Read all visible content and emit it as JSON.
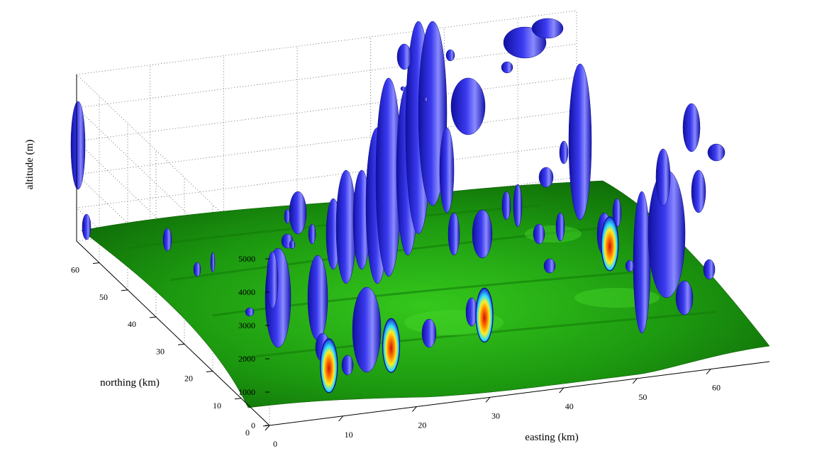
{
  "chart_data": {
    "type": "surface3d",
    "title": "",
    "xlabel": "easting (km)",
    "ylabel": "northing (km)",
    "zlabel": "altitude (m)",
    "x_ticks": [
      "0",
      "10",
      "20",
      "30",
      "40",
      "50",
      "60"
    ],
    "y_ticks": [
      "0",
      "10",
      "20",
      "30",
      "40",
      "50",
      "60"
    ],
    "z_ticks": [
      "0",
      "1000",
      "2000",
      "3000",
      "4000",
      "5000"
    ],
    "xlim": [
      0,
      68
    ],
    "ylim": [
      0,
      68
    ],
    "zlim": [
      0,
      5000
    ],
    "grid": true,
    "surfaces": [
      {
        "name": "terrain",
        "color": "#1f8f0f"
      },
      {
        "name": "isosurface",
        "color": "#2a2ad8"
      }
    ],
    "plumes": [
      {
        "x": 5,
        "y": 2
      },
      {
        "x": 15,
        "y": 6
      },
      {
        "x": 30,
        "y": 12
      },
      {
        "x": 54,
        "y": 30
      }
    ]
  }
}
